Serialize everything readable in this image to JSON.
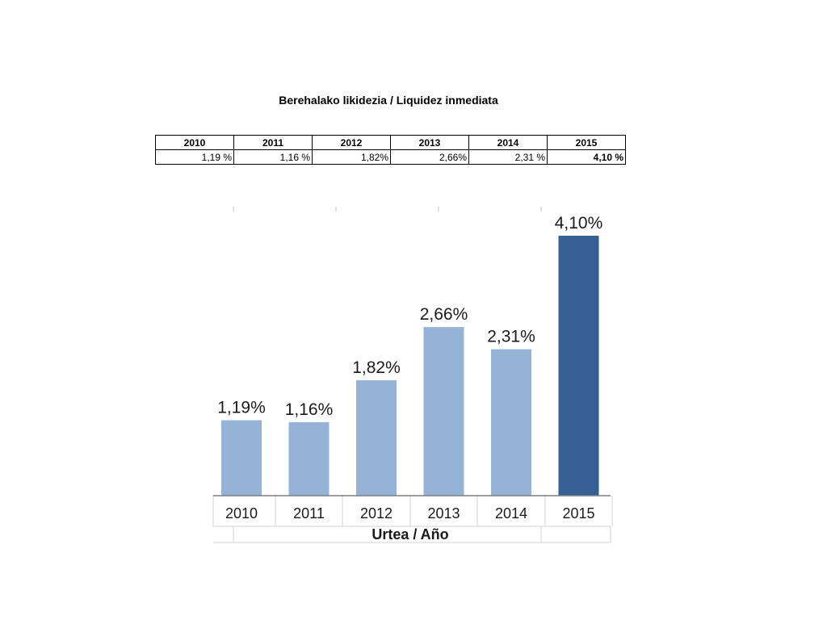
{
  "title": "Berehalako likidezia / Liquidez inmediata",
  "table": {
    "years": [
      "2010",
      "2011",
      "2012",
      "2013",
      "2014",
      "2015"
    ],
    "values": [
      "1,19 %",
      "1,16 %",
      "1,82%",
      "2,66%",
      "2,31 %",
      "4,10 %"
    ]
  },
  "chart_data": {
    "type": "bar",
    "categories": [
      "2010",
      "2011",
      "2012",
      "2013",
      "2014",
      "2015"
    ],
    "values": [
      1.19,
      1.16,
      1.82,
      2.66,
      2.31,
      4.1
    ],
    "data_labels": [
      "1,19%",
      "1,16%",
      "1,82%",
      "2,66%",
      "2,31%",
      "4,10%"
    ],
    "xlabel": "Urtea / Año",
    "ylabel": "",
    "ylim": [
      0,
      4.1
    ],
    "grid": false,
    "colors": {
      "bar": "#95b3d7",
      "highlight_bar": "#366092"
    },
    "highlight_index": 5
  }
}
